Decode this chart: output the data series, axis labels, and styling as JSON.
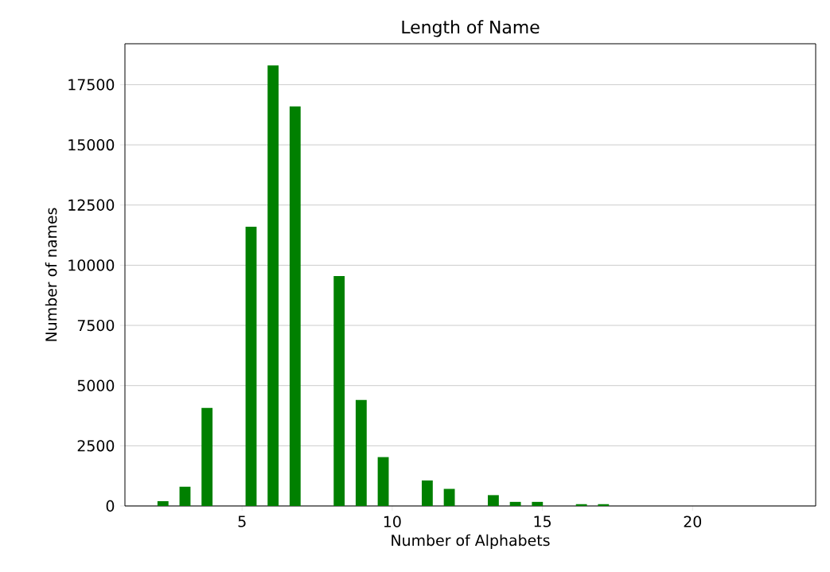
{
  "chart_data": {
    "type": "histogram",
    "title": "Length of Name",
    "xlabel": "Number of Alphabets",
    "ylabel": "Number of names",
    "bins": [
      2,
      2.733,
      3.467,
      4.2,
      4.933,
      5.667,
      6.4,
      7.133,
      7.867,
      8.6,
      9.333,
      10.067,
      10.8,
      11.533,
      12.267,
      13,
      13.733,
      14.467,
      15.2,
      15.933,
      16.667,
      17.4,
      18.133,
      18.867,
      19.6,
      20.333,
      21.067,
      21.8,
      22.533,
      23.267,
      24
    ],
    "values": [
      200,
      800,
      4070,
      0,
      11600,
      18300,
      16600,
      0,
      9550,
      4400,
      2030,
      0,
      1060,
      710,
      0,
      450,
      170,
      170,
      0,
      75,
      75,
      0,
      0,
      0,
      0,
      0,
      0,
      0,
      0,
      0
    ],
    "color": "#008000",
    "xlim": [
      1.1,
      24.1
    ],
    "xticks": [
      5,
      10,
      15,
      20
    ],
    "ylim": [
      0,
      19200
    ],
    "yticks": [
      0,
      2500,
      5000,
      7500,
      10000,
      12500,
      15000,
      17500
    ],
    "grid": "y"
  }
}
